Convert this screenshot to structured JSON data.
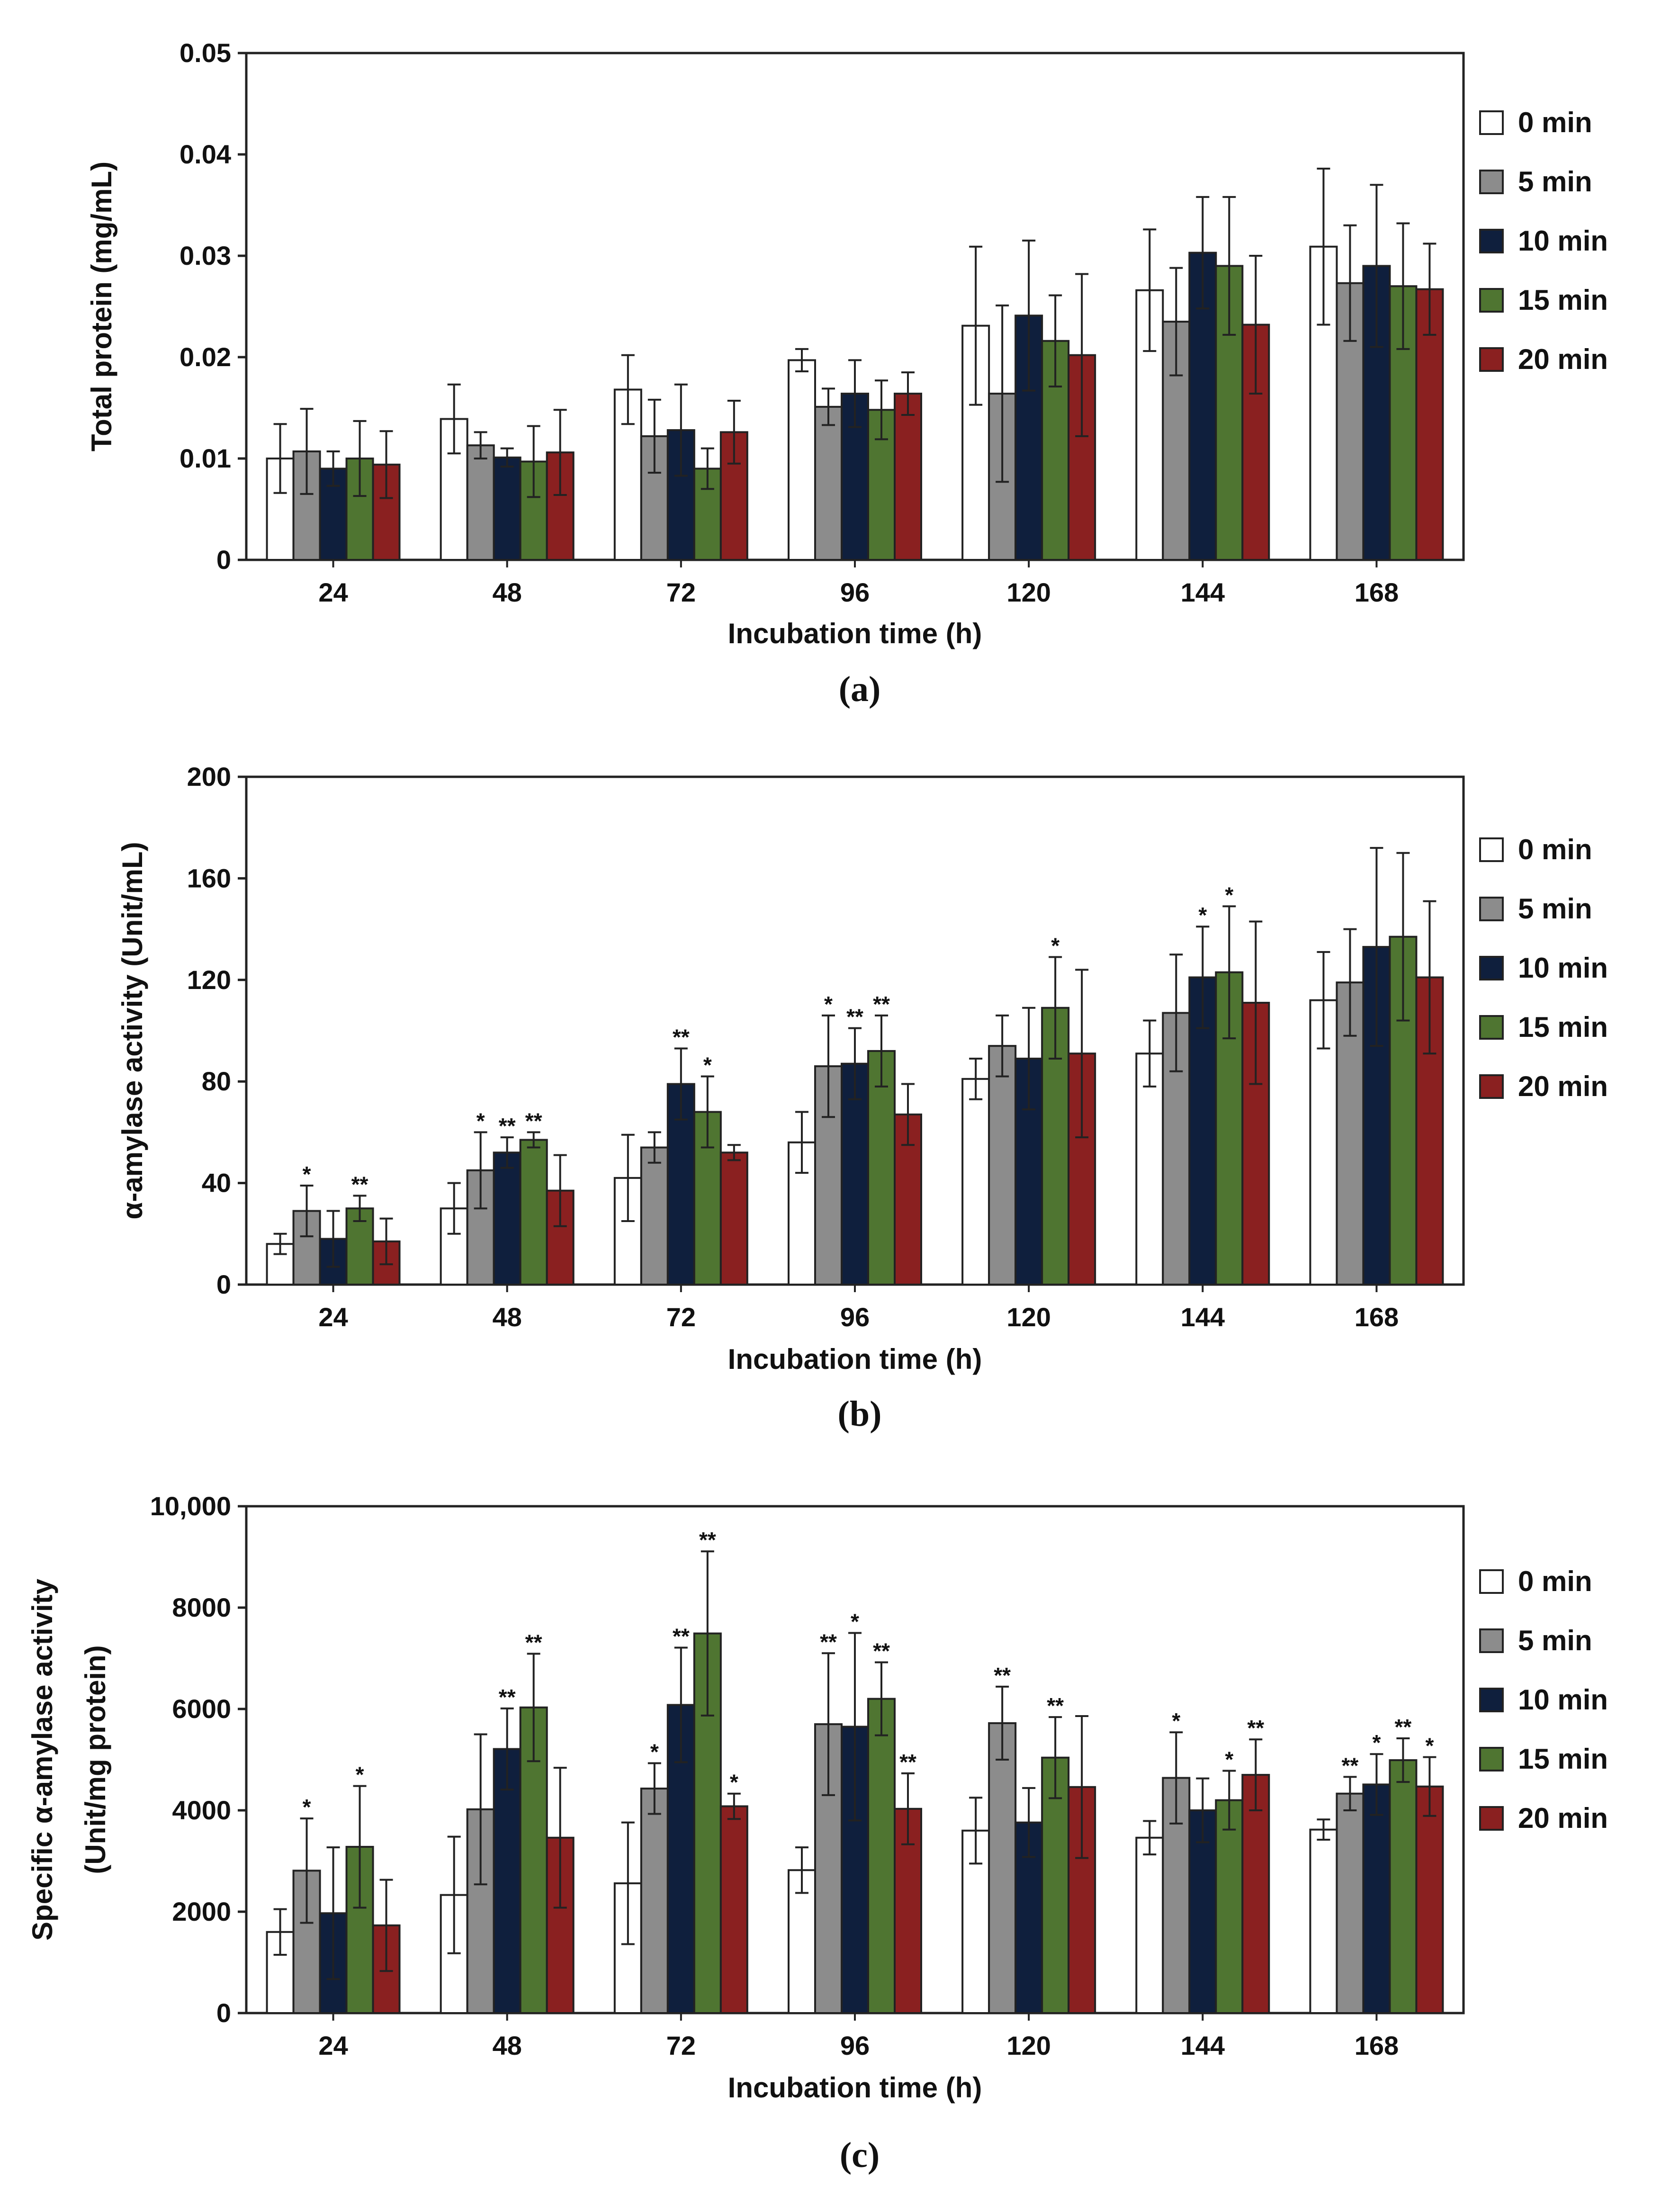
{
  "legend": {
    "entries": [
      {
        "name": "0 min",
        "color": "#ffffff"
      },
      {
        "name": "5 min",
        "color": "#8c8c8c"
      },
      {
        "name": "10 min",
        "color": "#0f1f3d"
      },
      {
        "name": "15 min",
        "color": "#4f7531"
      },
      {
        "name": "20 min",
        "color": "#8a2020"
      }
    ]
  },
  "chart_data": [
    {
      "panel": "(a)",
      "type": "bar",
      "xlabel": "Incubation time (h)",
      "ylabel": "Total protein (mg/mL)",
      "ylabel_lines": [
        "Total protein (mg/mL)"
      ],
      "ylim": [
        0,
        0.05
      ],
      "yticks": [
        0,
        0.01,
        0.02,
        0.03,
        0.04,
        0.05
      ],
      "ytick_labels": [
        "0",
        "0.01",
        "0.02",
        "0.03",
        "0.04",
        "0.05"
      ],
      "categories": [
        "24",
        "48",
        "72",
        "96",
        "120",
        "144",
        "168"
      ],
      "series": [
        {
          "name": "0 min",
          "values": [
            0.01,
            0.0139,
            0.0168,
            0.0197,
            0.0231,
            0.0266,
            0.0309
          ],
          "errors": [
            0.0034,
            0.0034,
            0.0034,
            0.0011,
            0.0078,
            0.006,
            0.0077
          ],
          "sig": [
            "",
            "",
            "",
            "",
            "",
            "",
            ""
          ]
        },
        {
          "name": "5 min",
          "values": [
            0.0107,
            0.0113,
            0.0122,
            0.0151,
            0.0164,
            0.0235,
            0.0273
          ],
          "errors": [
            0.0042,
            0.0013,
            0.0036,
            0.0018,
            0.0087,
            0.0053,
            0.0057
          ],
          "sig": [
            "",
            "",
            "",
            "",
            "",
            "",
            ""
          ]
        },
        {
          "name": "10 min",
          "values": [
            0.009,
            0.0101,
            0.0128,
            0.0164,
            0.0241,
            0.0303,
            0.029
          ],
          "errors": [
            0.0017,
            0.0009,
            0.0045,
            0.0033,
            0.0074,
            0.0055,
            0.008
          ],
          "sig": [
            "",
            "",
            "",
            "",
            "",
            "",
            ""
          ]
        },
        {
          "name": "15 min",
          "values": [
            0.01,
            0.0097,
            0.009,
            0.0148,
            0.0216,
            0.029,
            0.027
          ],
          "errors": [
            0.0037,
            0.0035,
            0.002,
            0.0029,
            0.0045,
            0.0068,
            0.0062
          ],
          "sig": [
            "",
            "",
            "",
            "",
            "",
            "",
            ""
          ]
        },
        {
          "name": "20 min",
          "values": [
            0.0094,
            0.0106,
            0.0126,
            0.0164,
            0.0202,
            0.0232,
            0.0267
          ],
          "errors": [
            0.0033,
            0.0042,
            0.0031,
            0.0021,
            0.008,
            0.0068,
            0.0045
          ],
          "sig": [
            "",
            "",
            "",
            "",
            "",
            "",
            ""
          ]
        }
      ]
    },
    {
      "panel": "(b)",
      "type": "bar",
      "xlabel": "Incubation time (h)",
      "ylabel": "α-amylase activity (Unit/mL)",
      "ylabel_lines": [
        "α-amylase activity (Unit/mL)"
      ],
      "ylim": [
        0,
        200
      ],
      "yticks": [
        0,
        40,
        80,
        120,
        160,
        200
      ],
      "ytick_labels": [
        "0",
        "40",
        "80",
        "120",
        "160",
        "200"
      ],
      "categories": [
        "24",
        "48",
        "72",
        "96",
        "120",
        "144",
        "168"
      ],
      "series": [
        {
          "name": "0 min",
          "values": [
            16,
            30,
            42,
            56,
            81,
            91,
            112
          ],
          "errors": [
            4,
            10,
            17,
            12,
            8,
            13,
            19
          ],
          "sig": [
            "",
            "",
            "",
            "",
            "",
            "",
            ""
          ]
        },
        {
          "name": "5 min",
          "values": [
            29,
            45,
            54,
            86,
            94,
            107,
            119
          ],
          "errors": [
            10,
            15,
            6,
            20,
            12,
            23,
            21
          ],
          "sig": [
            "*",
            "*",
            "",
            "*",
            "",
            "",
            ""
          ]
        },
        {
          "name": "10 min",
          "values": [
            18,
            52,
            79,
            87,
            89,
            121,
            133
          ],
          "errors": [
            11,
            6,
            14,
            14,
            20,
            20,
            39
          ],
          "sig": [
            "",
            "**",
            "**",
            "**",
            "",
            "*",
            ""
          ]
        },
        {
          "name": "15 min",
          "values": [
            30,
            57,
            68,
            92,
            109,
            123,
            137
          ],
          "errors": [
            5,
            3,
            14,
            14,
            20,
            26,
            33
          ],
          "sig": [
            "**",
            "**",
            "*",
            "**",
            "*",
            "*",
            ""
          ]
        },
        {
          "name": "20 min",
          "values": [
            17,
            37,
            52,
            67,
            91,
            111,
            121
          ],
          "errors": [
            9,
            14,
            3,
            12,
            33,
            32,
            30
          ],
          "sig": [
            "",
            "",
            "",
            "",
            "",
            "",
            ""
          ]
        }
      ]
    },
    {
      "panel": "(c)",
      "type": "bar",
      "xlabel": "Incubation time (h)",
      "ylabel": "Specific α-amylase activity (Unit/mg protein)",
      "ylabel_lines": [
        "Specific α-amylase activity",
        "(Unit/mg protein)"
      ],
      "ylim": [
        0,
        10000
      ],
      "yticks": [
        0,
        2000,
        4000,
        6000,
        8000,
        10000
      ],
      "ytick_labels": [
        "0",
        "2000",
        "4000",
        "6000",
        "8000",
        "10,000"
      ],
      "categories": [
        "24",
        "48",
        "72",
        "96",
        "120",
        "144",
        "168"
      ],
      "series": [
        {
          "name": "0 min",
          "values": [
            1600,
            2330,
            2560,
            2820,
            3600,
            3460,
            3620
          ],
          "errors": [
            450,
            1150,
            1200,
            450,
            650,
            330,
            200
          ],
          "sig": [
            "",
            "",
            "",
            "",
            "",
            "",
            ""
          ]
        },
        {
          "name": "5 min",
          "values": [
            2810,
            4020,
            4430,
            5700,
            5720,
            4640,
            4330
          ],
          "errors": [
            1030,
            1480,
            500,
            1400,
            720,
            900,
            330
          ],
          "sig": [
            "*",
            "",
            "*",
            "**",
            "**",
            "*",
            "**"
          ]
        },
        {
          "name": "10 min",
          "values": [
            1970,
            5210,
            6080,
            5650,
            3760,
            4000,
            4510
          ],
          "errors": [
            1300,
            800,
            1130,
            1850,
            680,
            630,
            600
          ],
          "sig": [
            "",
            "**",
            "**",
            "*",
            "",
            "",
            "*"
          ]
        },
        {
          "name": "15 min",
          "values": [
            3280,
            6030,
            7490,
            6200,
            5040,
            4200,
            4990
          ],
          "errors": [
            1200,
            1060,
            1620,
            720,
            800,
            580,
            430
          ],
          "sig": [
            "*",
            "**",
            "**",
            "**",
            "**",
            "*",
            "**"
          ]
        },
        {
          "name": "20 min",
          "values": [
            1730,
            3460,
            4080,
            4030,
            4460,
            4700,
            4470
          ],
          "errors": [
            900,
            1380,
            250,
            700,
            1400,
            700,
            580
          ],
          "sig": [
            "",
            "",
            "*",
            "**",
            "",
            "**",
            "*"
          ]
        }
      ]
    }
  ]
}
